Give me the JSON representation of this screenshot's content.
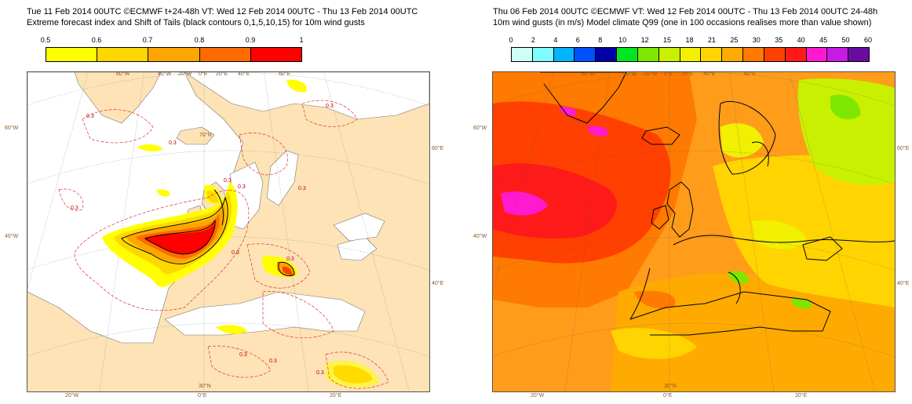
{
  "left": {
    "title_line1": "Tue 11 Feb 2014 00UTC ©ECMWF t+24-48h  VT: Wed 12 Feb 2014 00UTC - Thu 13 Feb 2014 00UTC",
    "title_line2": "Extreme forecast index and Shift of Tails (black contours 0,1,5,10,15) for 10m wind gusts",
    "scale_labels": [
      "0.5",
      "0.6",
      "0.7",
      "0.8",
      "0.9",
      "1"
    ],
    "scale_colors": [
      "#ffff00",
      "#ffd700",
      "#ffa500",
      "#ff6a00",
      "#ff0000"
    ],
    "contour_labels": [
      "0.3",
      "0.3",
      "0.3",
      "0.3",
      "0.3",
      "0.3",
      "0.3",
      "0.3",
      "0.3",
      "0.3",
      "0.3",
      "0.3"
    ],
    "coords": {
      "top": [
        "60°W",
        "40°W",
        "20°W",
        "0°E",
        "20°E",
        "40°E",
        "60°E"
      ],
      "lat_left_upper": "60°W",
      "lat_left_mid": "40°W",
      "lat_right_upper": "60°E",
      "lat_right_mid": "40°E",
      "inner_label": "70°N",
      "bottom": [
        "20°W",
        "0°E",
        "20°E"
      ],
      "bottom_inner": "30°N"
    },
    "colors": {
      "land": "#fde3b5",
      "sea": "#ffffff",
      "contour_dash": "#e03030"
    }
  },
  "right": {
    "title_line1": "Thu 06 Feb 2014 00UTC ©ECMWF VT: Wed 12 Feb 2014 00UTC - Thu 13 Feb 2014 00UTC   24-48h",
    "title_line2": "10m wind gusts (in m/s)   Model climate Q99 (one in 100 occasions realises more than value shown)",
    "scale_labels": [
      "0",
      "2",
      "4",
      "6",
      "8",
      "10",
      "12",
      "15",
      "18",
      "21",
      "25",
      "30",
      "35",
      "40",
      "45",
      "50",
      "60"
    ],
    "scale_colors": [
      "#cffff4",
      "#7ffcff",
      "#00b4ff",
      "#0050ff",
      "#0000a8",
      "#00e620",
      "#7fe600",
      "#c8f000",
      "#f0f000",
      "#ffd400",
      "#ffaa00",
      "#ff7a00",
      "#ff4000",
      "#ff1a1a",
      "#ff1ad0",
      "#c81ae6",
      "#6a0aa0"
    ],
    "coords": {
      "top": [
        "60°W",
        "40°W",
        "20°W",
        "0°E",
        "20°E",
        "40°E",
        "60°E"
      ],
      "lat_left_upper": "60°W",
      "lat_left_mid": "40°W",
      "lat_right_upper": "60°E",
      "lat_right_mid": "40°E",
      "bottom": [
        "20°W",
        "0°E",
        "20°E"
      ],
      "bottom_inner": "30°N"
    }
  }
}
